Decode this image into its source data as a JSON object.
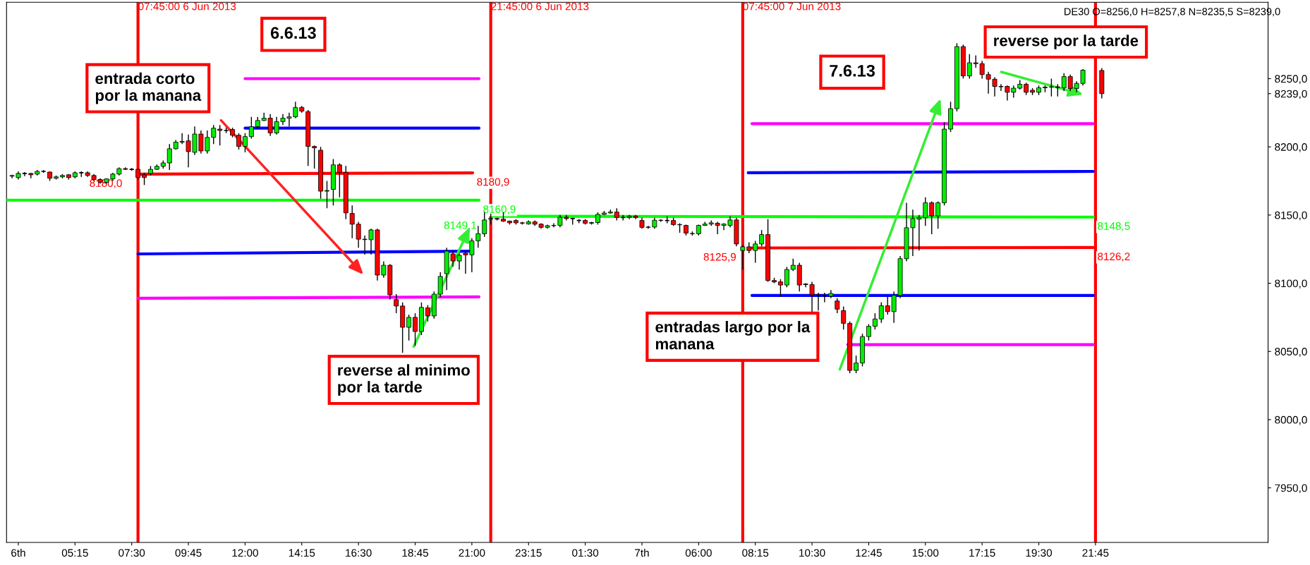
{
  "chart_data": {
    "type": "candlestick",
    "x": [
      "2013-06-06T02:45",
      "2013-06-06T03:00",
      "2013-06-06T03:15",
      "2013-06-06T03:30",
      "2013-06-06T03:45",
      "2013-06-06T04:00",
      "2013-06-06T04:15",
      "2013-06-06T04:30",
      "2013-06-06T04:45",
      "2013-06-06T05:00",
      "2013-06-06T05:15",
      "2013-06-06T05:30",
      "2013-06-06T05:45",
      "2013-06-06T06:00",
      "2013-06-06T06:15",
      "2013-06-06T06:30",
      "2013-06-06T06:45",
      "2013-06-06T07:00",
      "2013-06-06T07:15",
      "2013-06-06T07:30",
      "2013-06-06T07:45",
      "2013-06-06T08:00",
      "2013-06-06T08:15",
      "2013-06-06T08:30",
      "2013-06-06T08:45",
      "2013-06-06T09:00",
      "2013-06-06T09:15",
      "2013-06-06T09:30",
      "2013-06-06T09:45",
      "2013-06-06T10:00",
      "2013-06-06T10:15",
      "2013-06-06T10:30",
      "2013-06-06T10:45",
      "2013-06-06T11:00",
      "2013-06-06T11:15",
      "2013-06-06T11:30",
      "2013-06-06T11:45",
      "2013-06-06T12:00",
      "2013-06-06T12:15",
      "2013-06-06T12:30",
      "2013-06-06T12:45",
      "2013-06-06T13:00",
      "2013-06-06T13:15",
      "2013-06-06T13:30",
      "2013-06-06T13:45",
      "2013-06-06T14:00",
      "2013-06-06T14:15",
      "2013-06-06T14:30",
      "2013-06-06T14:45",
      "2013-06-06T15:00",
      "2013-06-06T15:15",
      "2013-06-06T15:30",
      "2013-06-06T15:45",
      "2013-06-06T16:00",
      "2013-06-06T16:15",
      "2013-06-06T16:30",
      "2013-06-06T16:45",
      "2013-06-06T17:00",
      "2013-06-06T17:15",
      "2013-06-06T17:30",
      "2013-06-06T17:45",
      "2013-06-06T18:00",
      "2013-06-06T18:15",
      "2013-06-06T18:30",
      "2013-06-06T18:45",
      "2013-06-06T19:00",
      "2013-06-06T19:15",
      "2013-06-06T19:30",
      "2013-06-06T19:45",
      "2013-06-06T20:00",
      "2013-06-06T20:15",
      "2013-06-06T20:30",
      "2013-06-06T20:45",
      "2013-06-06T21:00",
      "2013-06-06T21:15",
      "2013-06-06T21:30",
      "2013-06-06T21:45",
      "2013-06-06T22:00",
      "2013-06-06T22:15",
      "2013-06-06T22:30",
      "2013-06-06T22:45",
      "2013-06-06T23:00",
      "2013-06-06T23:15",
      "2013-06-06T23:30",
      "2013-06-06T23:45",
      "2013-06-07T00:00",
      "2013-06-07T00:15",
      "2013-06-07T00:30",
      "2013-06-07T00:45",
      "2013-06-07T01:00",
      "2013-06-07T01:15",
      "2013-06-07T01:30",
      "2013-06-07T01:45",
      "2013-06-07T02:00",
      "2013-06-07T02:15",
      "2013-06-07T02:30",
      "2013-06-07T02:45",
      "2013-06-07T03:00",
      "2013-06-07T03:15",
      "2013-06-07T03:30",
      "2013-06-07T03:45",
      "2013-06-07T04:00",
      "2013-06-07T04:15",
      "2013-06-07T04:30",
      "2013-06-07T04:45",
      "2013-06-07T05:00",
      "2013-06-07T05:15",
      "2013-06-07T05:30",
      "2013-06-07T05:45",
      "2013-06-07T06:00",
      "2013-06-07T06:15",
      "2013-06-07T06:30",
      "2013-06-07T06:45",
      "2013-06-07T07:00",
      "2013-06-07T07:15",
      "2013-06-07T07:30",
      "2013-06-07T07:45",
      "2013-06-07T08:00",
      "2013-06-07T08:15",
      "2013-06-07T08:30",
      "2013-06-07T08:45",
      "2013-06-07T09:00",
      "2013-06-07T09:15",
      "2013-06-07T09:30",
      "2013-06-07T09:45",
      "2013-06-07T10:00",
      "2013-06-07T10:15",
      "2013-06-07T10:30",
      "2013-06-07T10:45",
      "2013-06-07T11:00",
      "2013-06-07T11:15",
      "2013-06-07T11:30",
      "2013-06-07T11:45",
      "2013-06-07T12:00",
      "2013-06-07T12:15",
      "2013-06-07T12:30",
      "2013-06-07T12:45",
      "2013-06-07T13:00",
      "2013-06-07T13:15",
      "2013-06-07T13:30",
      "2013-06-07T13:45",
      "2013-06-07T14:00",
      "2013-06-07T14:15",
      "2013-06-07T14:30",
      "2013-06-07T14:45",
      "2013-06-07T15:00",
      "2013-06-07T15:15",
      "2013-06-07T15:30",
      "2013-06-07T15:45",
      "2013-06-07T16:00",
      "2013-06-07T16:15",
      "2013-06-07T16:30",
      "2013-06-07T16:45",
      "2013-06-07T17:00",
      "2013-06-07T17:15",
      "2013-06-07T17:30",
      "2013-06-07T17:45",
      "2013-06-07T18:00",
      "2013-06-07T18:15",
      "2013-06-07T18:30",
      "2013-06-07T18:45",
      "2013-06-07T19:00",
      "2013-06-07T19:15",
      "2013-06-07T19:30",
      "2013-06-07T19:45",
      "2013-06-07T20:00",
      "2013-06-07T20:15",
      "2013-06-07T20:30",
      "2013-06-07T20:45",
      "2013-06-07T21:00",
      "2013-06-07T21:15",
      "2013-06-07T22:00"
    ],
    "ohlc": [
      [
        8178.5,
        8179.5,
        8177,
        8179
      ],
      [
        8177.5,
        8182,
        8176,
        8180.5
      ],
      [
        8180.5,
        8181.5,
        8178.5,
        8180.5
      ],
      [
        8180.5,
        8181,
        8177,
        8179.5
      ],
      [
        8180,
        8183,
        8179,
        8182
      ],
      [
        8182,
        8183,
        8181,
        8182
      ],
      [
        8181.5,
        8182,
        8175,
        8177
      ],
      [
        8177,
        8179,
        8176,
        8178
      ],
      [
        8178,
        8180,
        8177,
        8179
      ],
      [
        8179.5,
        8180,
        8176,
        8177.5
      ],
      [
        8178,
        8182,
        8177,
        8181
      ],
      [
        8181,
        8182,
        8178,
        8181
      ],
      [
        8181,
        8182,
        8178,
        8179
      ],
      [
        8179,
        8180,
        8175,
        8176
      ],
      [
        8176,
        8177,
        8173,
        8174
      ],
      [
        8174,
        8177,
        8173,
        8176.5
      ],
      [
        8176.5,
        8181,
        8175,
        8180
      ],
      [
        8180,
        8185,
        8179,
        8184
      ],
      [
        8184,
        8185,
        8183,
        8183.5
      ],
      [
        8183.5,
        8184.5,
        8182.5,
        8183.5
      ],
      [
        8183.5,
        8184,
        8176,
        8177.5
      ],
      [
        8179.5,
        8181,
        8172,
        8177.5
      ],
      [
        8180.5,
        8186,
        8179,
        8183.5
      ],
      [
        8183.5,
        8187,
        8183,
        8185.7
      ],
      [
        8185.7,
        8190,
        8184,
        8188.2
      ],
      [
        8188.2,
        8202,
        8183,
        8198.6
      ],
      [
        8198.6,
        8205,
        8198,
        8203.4
      ],
      [
        8203.4,
        8210,
        8202,
        8204
      ],
      [
        8204.4,
        8209,
        8185,
        8196.5
      ],
      [
        8196,
        8215,
        8194,
        8209.4
      ],
      [
        8209.4,
        8212,
        8195,
        8197
      ],
      [
        8197,
        8212,
        8195,
        8206.9
      ],
      [
        8206.9,
        8216,
        8202,
        8213.7
      ],
      [
        8213,
        8216,
        8201,
        8212
      ],
      [
        8212,
        8214,
        8210,
        8212
      ],
      [
        8212.7,
        8214,
        8207,
        8208.5
      ],
      [
        8208.5,
        8210,
        8198,
        8200.3
      ],
      [
        8200.3,
        8210,
        8196,
        8207.5
      ],
      [
        8207.5,
        8222,
        8206,
        8214.8
      ],
      [
        8214.8,
        8222,
        8213,
        8219.3
      ],
      [
        8219.3,
        8225,
        8219,
        8221
      ],
      [
        8221,
        8224,
        8208,
        8210.2
      ],
      [
        8210.2,
        8222,
        8209,
        8218.5
      ],
      [
        8218.5,
        8224,
        8216,
        8221
      ],
      [
        8221,
        8225,
        8215,
        8222
      ],
      [
        8222,
        8233,
        8221,
        8228.9
      ],
      [
        8228.9,
        8230,
        8225,
        8226.2
      ],
      [
        8225.8,
        8227,
        8186,
        8200.3
      ],
      [
        8200.3,
        8201,
        8184,
        8199.3
      ],
      [
        8197.5,
        8200,
        8162,
        8167.5
      ],
      [
        8167.5,
        8175,
        8155,
        8168
      ],
      [
        8168.8,
        8191,
        8157,
        8186.8
      ],
      [
        8186.8,
        8188,
        8163,
        8181.2
      ],
      [
        8181.2,
        8186,
        8147,
        8151.6
      ],
      [
        8151.2,
        8157,
        8133,
        8143.3
      ],
      [
        8143.3,
        8145,
        8126,
        8132.3
      ],
      [
        8132.3,
        8135,
        8121,
        8132
      ],
      [
        8131.9,
        8140,
        8121,
        8139.1
      ],
      [
        8139.1,
        8140,
        8102,
        8106
      ],
      [
        8106,
        8116,
        8104,
        8113.2
      ],
      [
        8113.2,
        8114,
        8088,
        8091.5
      ],
      [
        8088,
        8092,
        8078,
        8083.3
      ],
      [
        8083.3,
        8086,
        8049,
        8067.7
      ],
      [
        8067.7,
        8077,
        8058,
        8075
      ],
      [
        8075,
        8078,
        8054,
        8064.6
      ],
      [
        8064.6,
        8086,
        8062,
        8082.3
      ],
      [
        8082,
        8084,
        8072,
        8076
      ],
      [
        8076,
        8094,
        8074,
        8092
      ],
      [
        8092,
        8108,
        8090,
        8105
      ],
      [
        8107,
        8126,
        8095,
        8123.6
      ],
      [
        8121.5,
        8124,
        8112,
        8116.3
      ],
      [
        8116.3,
        8122,
        8110,
        8120.5
      ],
      [
        8122,
        8124,
        8107,
        8120.8
      ],
      [
        8120.8,
        8133,
        8108,
        8131.1
      ],
      [
        8131.1,
        8142,
        8126,
        8136.3
      ],
      [
        8136.3,
        8152,
        8134,
        8146.4
      ],
      [
        8147,
        8151,
        8143,
        8147.5
      ],
      [
        8147.5,
        8148,
        8146,
        8147
      ],
      [
        8147,
        8152,
        8145,
        8145.5
      ],
      [
        8145.5,
        8146,
        8143,
        8144.3
      ],
      [
        8146,
        8147,
        8143,
        8144.3
      ],
      [
        8144.3,
        8145,
        8143,
        8144
      ],
      [
        8143.5,
        8146,
        8143,
        8145
      ],
      [
        8145,
        8146,
        8142,
        8143.3
      ],
      [
        8143.3,
        8144,
        8140,
        8141
      ],
      [
        8141,
        8143,
        8140,
        8142.2
      ],
      [
        8142.2,
        8144,
        8141,
        8142.4
      ],
      [
        8142.4,
        8150,
        8141,
        8148.4
      ],
      [
        8148.4,
        8150,
        8146,
        8147.4
      ],
      [
        8147.4,
        8148,
        8143,
        8147.4
      ],
      [
        8146,
        8147,
        8144,
        8146
      ],
      [
        8146,
        8147,
        8143,
        8144
      ],
      [
        8144,
        8145,
        8143,
        8144.5
      ],
      [
        8144.5,
        8152,
        8143,
        8150.5
      ],
      [
        8150.5,
        8153,
        8150,
        8151.5
      ],
      [
        8151.5,
        8154,
        8151,
        8152.2
      ],
      [
        8152.2,
        8155,
        8146,
        8148.2
      ],
      [
        8148.2,
        8150,
        8146,
        8148.2
      ],
      [
        8148.2,
        8150,
        8147,
        8149.2
      ],
      [
        8149.2,
        8150,
        8147,
        8148.2
      ],
      [
        8146,
        8148,
        8140,
        8141
      ],
      [
        8141,
        8142,
        8140,
        8141.2
      ],
      [
        8141.2,
        8148,
        8140,
        8146.2
      ],
      [
        8146.2,
        8147,
        8145,
        8146
      ],
      [
        8146,
        8149,
        8144,
        8146
      ],
      [
        8146,
        8148,
        8142,
        8143
      ],
      [
        8143,
        8144,
        8137,
        8142.8
      ],
      [
        8142.4,
        8143,
        8135,
        8136.8
      ],
      [
        8136.5,
        8138,
        8135,
        8136.3
      ],
      [
        8136.3,
        8143,
        8135,
        8142.4
      ],
      [
        8142.4,
        8145,
        8142,
        8143.4
      ],
      [
        8143.4,
        8146,
        8142,
        8144.3
      ],
      [
        8144,
        8145,
        8136,
        8142.4
      ],
      [
        8142.4,
        8144,
        8139,
        8143.4
      ],
      [
        8142.4,
        8149,
        8141,
        8146.4
      ],
      [
        8146.4,
        8148,
        8127,
        8128.8
      ],
      [
        8124,
        8128,
        8110,
        8126.7
      ],
      [
        8126.7,
        8130,
        8122,
        8124
      ],
      [
        8124,
        8131,
        8115,
        8128.8
      ],
      [
        8128.8,
        8139,
        8127,
        8135.7
      ],
      [
        8135.7,
        8147,
        8101,
        8102
      ],
      [
        8102,
        8104,
        8100,
        8101
      ],
      [
        8101,
        8103,
        8090,
        8098.7
      ],
      [
        8098.7,
        8112,
        8097,
        8110.1
      ],
      [
        8110.1,
        8118,
        8109,
        8113.2
      ],
      [
        8113.2,
        8115,
        8094,
        8098.7
      ],
      [
        8099,
        8100,
        8097,
        8099.5
      ],
      [
        8099,
        8101,
        8078,
        8091.5
      ],
      [
        8091.5,
        8093,
        8080,
        8091
      ],
      [
        8091,
        8093,
        8086,
        8091
      ],
      [
        8090.5,
        8095,
        8089,
        8092.5
      ],
      [
        8087,
        8089,
        8078,
        8081
      ],
      [
        8080,
        8083,
        8066,
        8070.6
      ],
      [
        8070.6,
        8072,
        8034,
        8036.1
      ],
      [
        8036.1,
        8047,
        8034,
        8041.5
      ],
      [
        8041.5,
        8063,
        8039,
        8060.9
      ],
      [
        8060.9,
        8070,
        8058,
        8068.4
      ],
      [
        8068.4,
        8078,
        8066,
        8073.8
      ],
      [
        8073.8,
        8086,
        8071,
        8083.5
      ],
      [
        8083.5,
        8090,
        8077,
        8079.2
      ],
      [
        8079.2,
        8094,
        8071,
        8091.1
      ],
      [
        8091.1,
        8120,
        8089,
        8118
      ],
      [
        8118,
        8159,
        8116,
        8140.7
      ],
      [
        8140.7,
        8154,
        8120,
        8147.4
      ],
      [
        8147,
        8150,
        8124,
        8148
      ],
      [
        8148,
        8163,
        8142,
        8159
      ],
      [
        8159,
        8160,
        8136,
        8149.4
      ],
      [
        8149.4,
        8160,
        8140,
        8159
      ],
      [
        8159,
        8218,
        8157,
        8213
      ],
      [
        8213,
        8233,
        8211,
        8228
      ],
      [
        8228,
        8276,
        8226,
        8273.5
      ],
      [
        8273.5,
        8275,
        8250,
        8252
      ],
      [
        8252,
        8268,
        8250,
        8261.6
      ],
      [
        8261.6,
        8267,
        8258,
        8261
      ],
      [
        8261,
        8263,
        8250,
        8253
      ],
      [
        8253,
        8255,
        8239,
        8249.6
      ],
      [
        8249.6,
        8251,
        8237,
        8244.3
      ],
      [
        8244.3,
        8246,
        8241,
        8244
      ],
      [
        8244.3,
        8245,
        8234,
        8240
      ],
      [
        8240,
        8245,
        8236,
        8243
      ],
      [
        8243,
        8249,
        8242,
        8245.9
      ],
      [
        8245.9,
        8247,
        8238,
        8240
      ],
      [
        8241.5,
        8243,
        8238,
        8240
      ],
      [
        8240,
        8245,
        8238,
        8243.3
      ],
      [
        8243.3,
        8245,
        8240,
        8243.8
      ],
      [
        8243.8,
        8250,
        8237,
        8244
      ],
      [
        8244,
        8246,
        8237,
        8243.5
      ],
      [
        8243.3,
        8254,
        8241,
        8251.5
      ],
      [
        8251.5,
        8253,
        8241,
        8242.8
      ],
      [
        8242.8,
        8248,
        8240,
        8246.5
      ],
      [
        8246.5,
        8257,
        8245,
        8256.2
      ],
      [
        8256,
        8257.8,
        8235.5,
        8239
      ]
    ],
    "series": [
      {
        "type": "line",
        "color": "#ff00ff",
        "x": [
          "2013-06-06T12:00",
          "2013-06-06T21:17"
        ],
        "values": [
          8250,
          8250
        ]
      },
      {
        "type": "line",
        "color": "#0000ff",
        "x": [
          "2013-06-06T12:00",
          "2013-06-06T21:17"
        ],
        "values": [
          8213.7,
          8213.7
        ]
      },
      {
        "type": "line",
        "color": "#ff0000",
        "x": [
          "2013-06-06T07:45",
          "2013-06-06T21:02"
        ],
        "values": [
          8180.0,
          8180.9
        ],
        "value_labels": [
          "8180,0",
          "8180,9"
        ]
      },
      {
        "type": "line",
        "color": "#00ff00",
        "x": [
          "2013-06-06T02:32",
          "2013-06-06T21:17"
        ],
        "values": [
          8160.9,
          8160.9
        ],
        "value_labels": [
          null,
          "8160,9"
        ]
      },
      {
        "type": "line",
        "color": "#0000ff",
        "x": [
          "2013-06-06T07:45",
          "2013-06-06T20:53"
        ],
        "values": [
          8121.5,
          8123.5
        ]
      },
      {
        "type": "line",
        "color": "#ff00ff",
        "x": [
          "2013-06-06T07:45",
          "2013-06-06T21:17"
        ],
        "values": [
          8089,
          8090
        ]
      },
      {
        "type": "line",
        "color": "#00ff00",
        "x": [
          "2013-06-06T21:49",
          "2013-06-07T21:40"
        ],
        "values": [
          8149.1,
          8148.5
        ],
        "value_labels": [
          "8149,1",
          "8148,5"
        ]
      },
      {
        "type": "line",
        "color": "#ff00ff",
        "x": [
          "2013-06-07T08:07",
          "2013-06-07T21:40"
        ],
        "values": [
          8217,
          8217
        ]
      },
      {
        "type": "line",
        "color": "#0000ff",
        "x": [
          "2013-06-07T07:58",
          "2013-06-07T21:40"
        ],
        "values": [
          8181,
          8182
        ]
      },
      {
        "type": "line",
        "color": "#ff0000",
        "x": [
          "2013-06-07T08:07",
          "2013-06-07T21:40"
        ],
        "values": [
          8125.9,
          8126.2
        ],
        "value_labels": [
          "8125,9",
          "8126,2"
        ]
      },
      {
        "type": "line",
        "color": "#0000ff",
        "x": [
          "2013-06-07T08:07",
          "2013-06-07T21:40"
        ],
        "values": [
          8091,
          8091
        ]
      },
      {
        "type": "line",
        "color": "#ff00ff",
        "x": [
          "2013-06-07T11:55",
          "2013-06-07T21:40"
        ],
        "values": [
          8055,
          8055
        ]
      }
    ],
    "ref_lines": [
      {
        "axis": "x",
        "value": "2013-06-06T07:45",
        "label": "07:45:00 6 Jun 2013",
        "color": "#ff0000"
      },
      {
        "axis": "x",
        "value": "2013-06-06T21:45",
        "label": "21:45:00 6 Jun 2013",
        "color": "#ff0000"
      },
      {
        "axis": "x",
        "value": "2013-06-07T07:45",
        "label": "07:45:00 7 Jun 2013",
        "color": "#ff0000"
      },
      {
        "axis": "x",
        "value": "2013-06-07T21:45",
        "color": "#ff0000"
      }
    ],
    "annotations": [
      "6.6.13",
      "7.6.13",
      "entrada corto\npor la manana",
      "reverse al minimo\npor la tarde",
      "entradas largo por la\nmanana",
      "reverse por la tarde",
      "DE30 O=8256,0 H=8257,8 N=8235,5 S=8239,0"
    ],
    "xlim": [
      "2013-06-06T02:32",
      "2013-06-08T04:36"
    ],
    "xticks": [
      {
        "value": "2013-06-06T03:00",
        "label": "6th"
      },
      {
        "value": "2013-06-06T05:15",
        "label": "05:15"
      },
      {
        "value": "2013-06-06T07:30",
        "label": "07:30"
      },
      {
        "value": "2013-06-06T09:45",
        "label": "09:45"
      },
      {
        "value": "2013-06-06T12:00",
        "label": "12:00"
      },
      {
        "value": "2013-06-06T14:15",
        "label": "14:15"
      },
      {
        "value": "2013-06-06T16:30",
        "label": "16:30"
      },
      {
        "value": "2013-06-06T18:45",
        "label": "18:45"
      },
      {
        "value": "2013-06-06T21:00",
        "label": "21:00"
      },
      {
        "value": "2013-06-06T23:15",
        "label": "23:15"
      },
      {
        "value": "2013-06-07T01:30",
        "label": "01:30"
      },
      {
        "value": "2013-06-07T03:45",
        "label": "7th"
      },
      {
        "value": "2013-06-07T06:00",
        "label": "06:00"
      },
      {
        "value": "2013-06-07T08:15",
        "label": "08:15"
      },
      {
        "value": "2013-06-07T10:30",
        "label": "10:30"
      },
      {
        "value": "2013-06-07T12:45",
        "label": "12:45"
      },
      {
        "value": "2013-06-07T15:00",
        "label": "15:00"
      },
      {
        "value": "2013-06-07T17:15",
        "label": "17:15"
      },
      {
        "value": "2013-06-07T19:30",
        "label": "19:30"
      },
      {
        "value": "2013-06-07T21:45",
        "label": "21:45"
      }
    ],
    "ylim": [
      7910,
      8306
    ],
    "yticks": [
      {
        "value": 7950,
        "label": "7950,0"
      },
      {
        "value": 8000,
        "label": "8000,0"
      },
      {
        "value": 8050,
        "label": "8050,0"
      },
      {
        "value": 8100,
        "label": "8100,0"
      },
      {
        "value": 8150,
        "label": "8150,0"
      },
      {
        "value": 8200,
        "label": "8200,0"
      },
      {
        "value": 8239,
        "label": "8239,0"
      },
      {
        "value": 8250,
        "label": "8250,0"
      }
    ],
    "grid": false,
    "legend": false
  }
}
